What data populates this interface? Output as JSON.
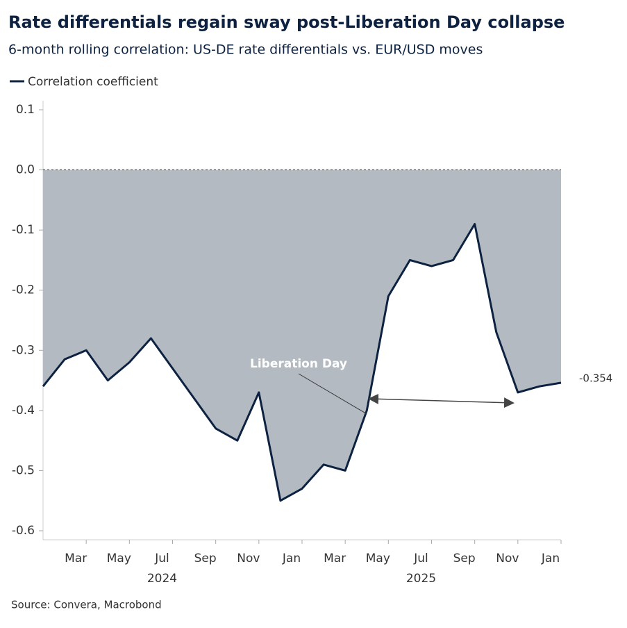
{
  "chart_data": {
    "type": "area-line",
    "title": "Rate differentials regain sway post-Liberation Day collapse",
    "subtitle": "6-month rolling correlation: US-DE rate differentials vs. EUR/USD moves",
    "source": "Source: Convera, Macrobond",
    "x": [
      "2024-01",
      "2024-02",
      "2024-03",
      "2024-04",
      "2024-05",
      "2024-06",
      "2024-07",
      "2024-08",
      "2024-09",
      "2024-10",
      "2024-11",
      "2024-12",
      "2025-01",
      "2025-02",
      "2025-03",
      "2025-04",
      "2025-05",
      "2025-06",
      "2025-07",
      "2025-08",
      "2025-09",
      "2025-10",
      "2025-11",
      "2025-12",
      "2026-01"
    ],
    "series": [
      {
        "name": "Correlation coefficient",
        "color": "#0d2240",
        "fill": "#b3bac2",
        "values": [
          -0.36,
          -0.315,
          -0.3,
          -0.35,
          -0.32,
          -0.28,
          -0.33,
          -0.38,
          -0.43,
          -0.45,
          -0.37,
          -0.55,
          -0.53,
          -0.49,
          -0.5,
          -0.4,
          -0.21,
          -0.15,
          -0.16,
          -0.15,
          -0.09,
          -0.27,
          -0.37,
          -0.36,
          -0.354
        ]
      }
    ],
    "xlim": [
      "2024-01",
      "2026-01"
    ],
    "xticks": [
      {
        "value": "2024-03",
        "label": "Mar"
      },
      {
        "value": "2024-05",
        "label": "May"
      },
      {
        "value": "2024-07",
        "label": "Jul"
      },
      {
        "value": "2024-09",
        "label": "Sep"
      },
      {
        "value": "2024-11",
        "label": "Nov"
      },
      {
        "value": "2025-01",
        "label": "Jan"
      },
      {
        "value": "2025-03",
        "label": "Mar"
      },
      {
        "value": "2025-05",
        "label": "May"
      },
      {
        "value": "2025-07",
        "label": "Jul"
      },
      {
        "value": "2025-09",
        "label": "Sep"
      },
      {
        "value": "2025-11",
        "label": "Nov"
      },
      {
        "value": "2026-01",
        "label": "Jan"
      }
    ],
    "years": [
      {
        "value": "2024-07",
        "label": "2024"
      },
      {
        "value": "2025-07",
        "label": "2025"
      }
    ],
    "ylim": [
      -0.615,
      0.115
    ],
    "yticks": [
      0.1,
      {
        "value": 0,
        "label": "0.0"
      },
      -0.1,
      -0.2,
      -0.3,
      -0.4,
      -0.5,
      -0.6
    ],
    "zero_line": true,
    "annotations": [
      {
        "text": "Liberation Day",
        "x": "2025-04"
      }
    ]
  }
}
